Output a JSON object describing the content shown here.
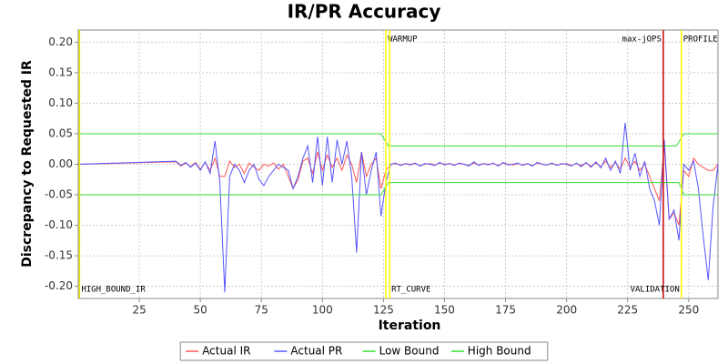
{
  "chart_data": {
    "type": "line",
    "title": "IR/PR Accuracy",
    "x_label": "Iteration",
    "y_label": "Discrepancy to Requested IR",
    "xlim": [
      0,
      262
    ],
    "xticks": [
      25,
      50,
      75,
      100,
      125,
      150,
      175,
      200,
      225,
      250
    ],
    "ylim": [
      -0.22,
      0.22
    ],
    "yticks": [
      {
        "value": -0.2,
        "label": "-0.20"
      },
      {
        "value": -0.15,
        "label": "-0.15"
      },
      {
        "value": -0.1,
        "label": "-0.10"
      },
      {
        "value": -0.05,
        "label": "-0.05"
      },
      {
        "value": 0,
        "label": "0.00"
      },
      {
        "value": 0.05,
        "label": "0.05"
      },
      {
        "value": 0.1,
        "label": "0.10"
      },
      {
        "value": 0.15,
        "label": "0.15"
      },
      {
        "value": 0.2,
        "label": "0.20"
      }
    ],
    "grid": true,
    "legend": "bottom",
    "x": [
      0,
      40,
      42,
      44,
      46,
      48,
      50,
      52,
      54,
      56,
      58,
      60,
      62,
      64,
      66,
      68,
      70,
      72,
      74,
      76,
      78,
      80,
      82,
      84,
      86,
      88,
      90,
      92,
      94,
      96,
      98,
      100,
      102,
      104,
      106,
      108,
      110,
      112,
      114,
      116,
      118,
      120,
      122,
      124,
      126,
      128,
      130,
      132,
      134,
      136,
      138,
      140,
      142,
      144,
      146,
      148,
      150,
      152,
      154,
      156,
      158,
      160,
      162,
      164,
      166,
      168,
      170,
      172,
      174,
      176,
      178,
      180,
      182,
      184,
      186,
      188,
      190,
      192,
      194,
      196,
      198,
      200,
      202,
      204,
      206,
      208,
      210,
      212,
      214,
      216,
      218,
      220,
      222,
      224,
      226,
      228,
      230,
      232,
      234,
      236,
      238,
      240,
      242,
      244,
      246,
      248,
      250,
      252,
      254,
      256,
      258,
      260,
      262
    ],
    "series": [
      {
        "name": "Actual IR",
        "color": "#ff5555",
        "values": [
          0,
          0.004,
          -0.003,
          0.002,
          -0.004,
          0.003,
          -0.008,
          0.003,
          -0.01,
          0.01,
          -0.02,
          -0.02,
          0.005,
          -0.005,
          0,
          -0.015,
          0.002,
          -0.005,
          -0.01,
          0,
          -0.003,
          0.002,
          -0.008,
          0,
          -0.02,
          -0.04,
          -0.025,
          0.005,
          0.01,
          -0.015,
          0.02,
          -0.01,
          0.015,
          -0.005,
          0.01,
          -0.01,
          0.015,
          0,
          -0.03,
          0.02,
          -0.02,
          0,
          0.01,
          -0.04,
          -0.01,
          0,
          0.001,
          -0.001,
          0.001,
          0,
          0.001,
          -0.002,
          0,
          0.001,
          -0.001,
          0.002,
          0,
          0.001,
          -0.001,
          0.001,
          0,
          -0.002,
          0.002,
          -0.001,
          0.001,
          0,
          0.001,
          -0.002,
          0.002,
          0,
          -0.001,
          0.001,
          -0.001,
          0.001,
          -0.002,
          0.002,
          0,
          -0.001,
          0.001,
          -0.001,
          0,
          0.001,
          -0.002,
          0.001,
          -0.002,
          0.002,
          -0.003,
          0.002,
          -0.004,
          0.005,
          -0.005,
          0.003,
          -0.008,
          0.01,
          -0.005,
          0.005,
          -0.01,
          0,
          -0.02,
          -0.04,
          -0.06,
          0.03,
          -0.09,
          -0.08,
          -0.1,
          -0.01,
          -0.02,
          0.01,
          0,
          -0.005,
          -0.01,
          -0.01,
          0
        ]
      },
      {
        "name": "Actual PR",
        "color": "#5555ff",
        "values": [
          0,
          0.005,
          -0.002,
          0.003,
          -0.005,
          0.002,
          -0.01,
          0.004,
          -0.015,
          0.038,
          -0.03,
          -0.21,
          -0.02,
          0,
          -0.01,
          -0.03,
          -0.01,
          0,
          -0.025,
          -0.035,
          -0.02,
          -0.01,
          0,
          -0.005,
          -0.01,
          -0.04,
          -0.02,
          0.01,
          0.03,
          -0.03,
          0.045,
          -0.035,
          0.045,
          -0.03,
          0.04,
          0,
          0.038,
          -0.02,
          -0.145,
          0.02,
          -0.05,
          -0.01,
          0.02,
          -0.085,
          -0.03,
          0,
          0.002,
          -0.002,
          0.001,
          -0.001,
          0.002,
          -0.003,
          0.001,
          0,
          -0.002,
          0.003,
          -0.001,
          0.001,
          -0.002,
          0.002,
          0,
          -0.003,
          0.004,
          -0.002,
          0.001,
          -0.001,
          0.002,
          -0.003,
          0.003,
          -0.001,
          0,
          0.002,
          -0.002,
          0.001,
          -0.003,
          0.003,
          0,
          -0.001,
          0.002,
          -0.002,
          0.001,
          0,
          -0.003,
          0.002,
          -0.004,
          0.003,
          -0.005,
          0.004,
          -0.006,
          0.01,
          -0.01,
          0.005,
          -0.015,
          0.068,
          -0.01,
          0.018,
          -0.02,
          0.005,
          -0.04,
          -0.06,
          -0.1,
          0.04,
          -0.09,
          -0.075,
          -0.125,
          0,
          -0.01,
          0.005,
          -0.04,
          -0.12,
          -0.19,
          -0.07,
          0
        ]
      },
      {
        "name": "Low Bound",
        "color": "#33dd33",
        "x": [
          0,
          124,
          127,
          246,
          248,
          262
        ],
        "values": [
          -0.05,
          -0.05,
          -0.03,
          -0.03,
          -0.05,
          -0.05
        ]
      },
      {
        "name": "High Bound",
        "color": "#33dd33",
        "x": [
          0,
          124,
          127,
          245,
          248,
          262
        ],
        "values": [
          0.05,
          0.05,
          0.03,
          0.03,
          0.05,
          0.05
        ]
      }
    ],
    "markers": [
      {
        "label": "HIGH_BOUND_IR",
        "value": 0.5,
        "color": "#e8e800"
      },
      {
        "label": "WARMUP",
        "value": 126,
        "color": "#ffff00"
      },
      {
        "label": "RT_CURVE",
        "value": 127.5,
        "color": "#ffff00"
      },
      {
        "label": "max-jOPS",
        "value": 239.6,
        "color": "#cc0000"
      },
      {
        "label": "VALIDATION",
        "value": 247,
        "color": "#ffff00"
      },
      {
        "label": "PROFILE",
        "value": 247,
        "color": "#ffff00"
      }
    ]
  }
}
